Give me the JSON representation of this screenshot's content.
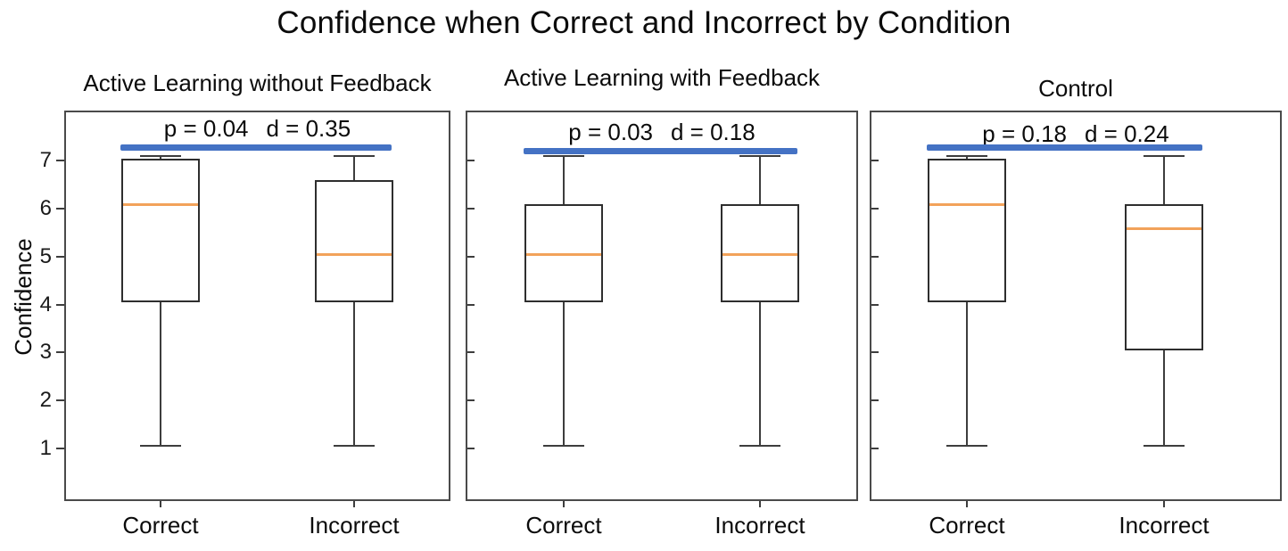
{
  "colors": {
    "median_line": "#F2A25A",
    "significance_bar": "#4472C4",
    "box_outline": "#2E2E2E",
    "whisker_gray": "#3D3D3D",
    "panel_border": "#4A4A4A",
    "background": "#FFFFFF"
  },
  "chart_data": {
    "type": "boxplot",
    "title": "Confidence when Correct and Incorrect by Condition",
    "ylabel": "Confidence",
    "yticks": [
      1,
      2,
      3,
      4,
      5,
      6,
      7
    ],
    "ylim": [
      -0.1,
      8.05
    ],
    "categories": [
      "Correct",
      "Incorrect"
    ],
    "grid": false,
    "legend": "none",
    "panels": [
      {
        "title": "Active Learning without Feedback",
        "p_label": "p = 0.04",
        "d_label": "d = 0.35",
        "p_value": 0.04,
        "effect_size_d": 0.35,
        "boxes": [
          {
            "category": "Correct",
            "whisker_low": 1.05,
            "q1": 4.05,
            "median": 6.1,
            "q3": 7.05,
            "whisker_high": 7.1
          },
          {
            "category": "Incorrect",
            "whisker_low": 1.05,
            "q1": 4.05,
            "median": 5.05,
            "q3": 6.6,
            "whisker_high": 7.1
          }
        ]
      },
      {
        "title": "Active Learning with Feedback",
        "p_label": "p = 0.03",
        "d_label": "d = 0.18",
        "p_value": 0.03,
        "effect_size_d": 0.18,
        "boxes": [
          {
            "category": "Correct",
            "whisker_low": 1.05,
            "q1": 4.05,
            "median": 5.05,
            "q3": 6.1,
            "whisker_high": 7.1
          },
          {
            "category": "Incorrect",
            "whisker_low": 1.05,
            "q1": 4.05,
            "median": 5.05,
            "q3": 6.1,
            "whisker_high": 7.1
          }
        ]
      },
      {
        "title": "Control",
        "p_label": "p = 0.18",
        "d_label": "d = 0.24",
        "p_value": 0.18,
        "effect_size_d": 0.24,
        "boxes": [
          {
            "category": "Correct",
            "whisker_low": 1.05,
            "q1": 4.05,
            "median": 6.1,
            "q3": 7.05,
            "whisker_high": 7.1
          },
          {
            "category": "Incorrect",
            "whisker_low": 1.05,
            "q1": 3.05,
            "median": 5.6,
            "q3": 6.1,
            "whisker_high": 7.1
          }
        ]
      }
    ]
  }
}
